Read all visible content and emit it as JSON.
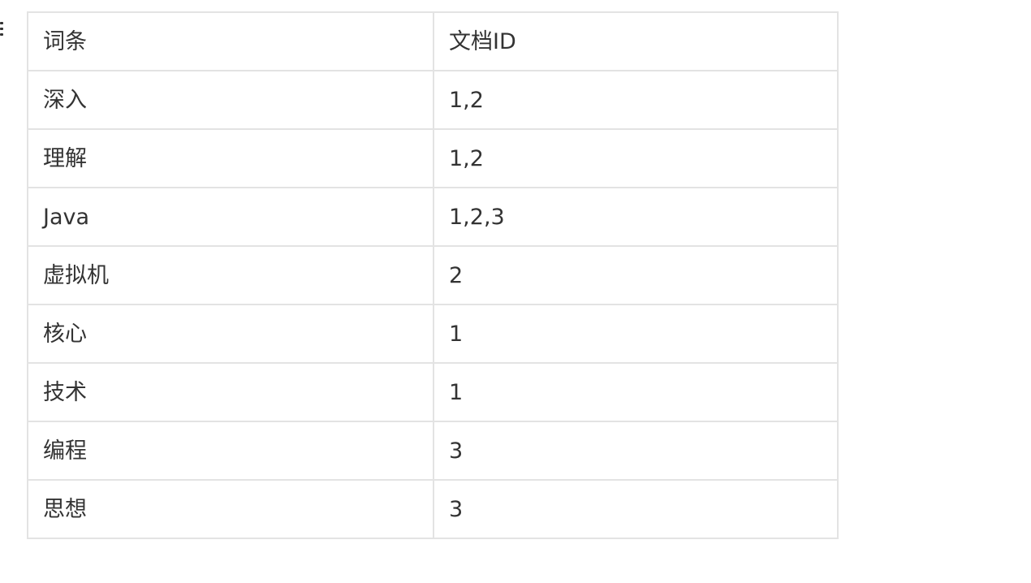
{
  "table": {
    "headers": [
      "词条",
      "文档ID"
    ],
    "rows": [
      [
        "深入",
        "1,2"
      ],
      [
        "理解",
        "1,2"
      ],
      [
        "Java",
        "1,2,3"
      ],
      [
        "虚拟机",
        "2"
      ],
      [
        "核心",
        "1"
      ],
      [
        "技术",
        "1"
      ],
      [
        "编程",
        "3"
      ],
      [
        "思想",
        "3"
      ]
    ]
  }
}
